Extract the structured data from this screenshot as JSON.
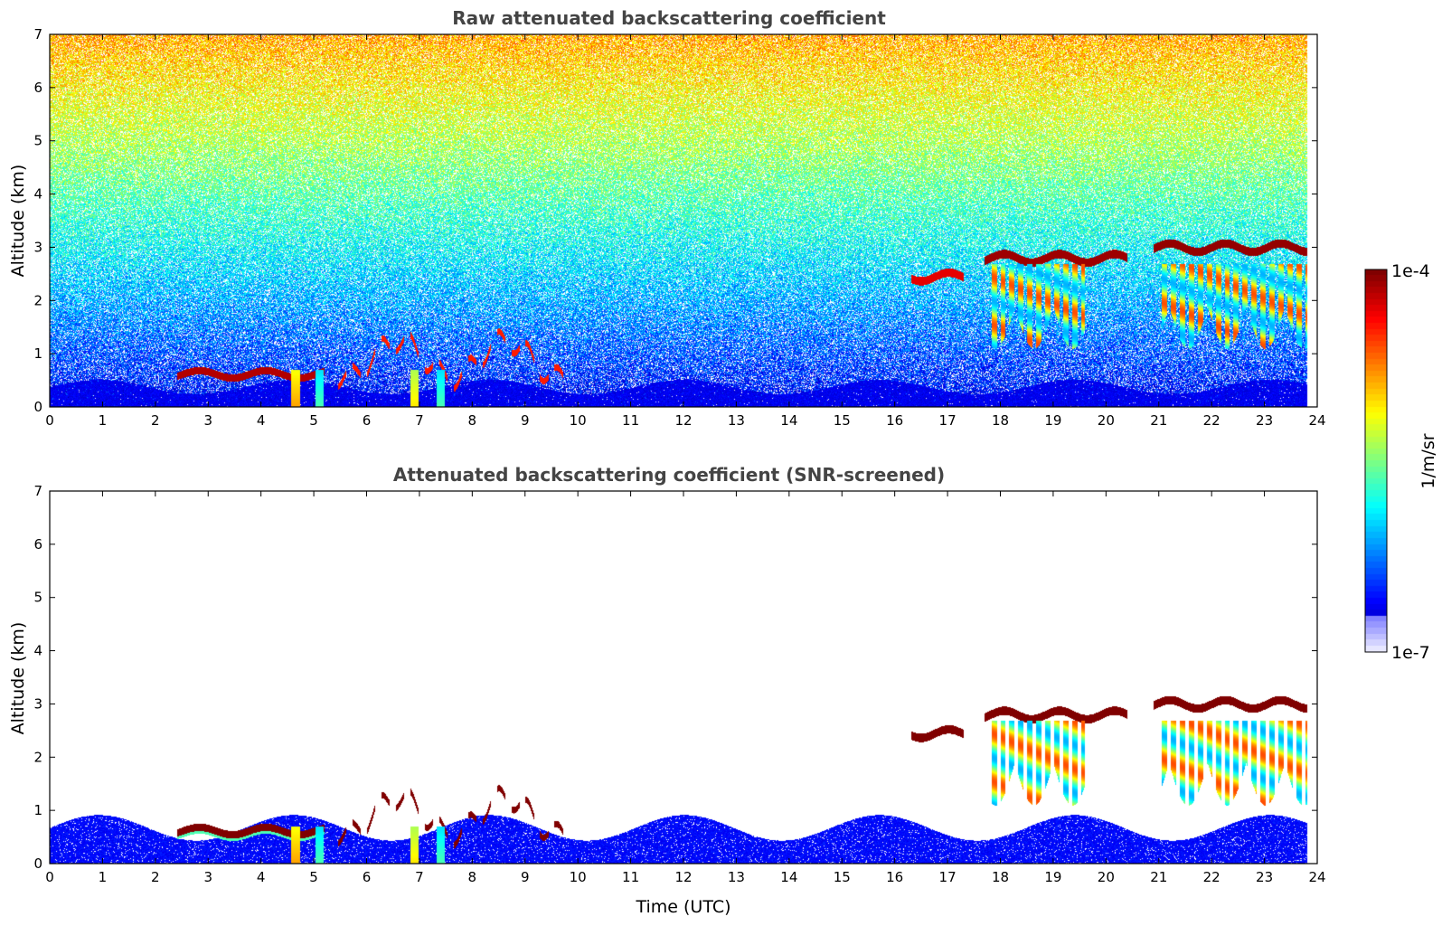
{
  "chart_data": [
    {
      "type": "heatmap",
      "title": "Raw attenuated backscattering coefficient",
      "xlabel": "",
      "ylabel": "Altitude (km)",
      "xlim": [
        0,
        24
      ],
      "ylim": [
        0,
        7
      ],
      "x_ticks": [
        "0",
        "1",
        "2",
        "3",
        "4",
        "5",
        "6",
        "7",
        "8",
        "9",
        "10",
        "11",
        "12",
        "13",
        "14",
        "15",
        "16",
        "17",
        "18",
        "19",
        "20",
        "21",
        "22",
        "23",
        "24"
      ],
      "y_ticks": [
        "0",
        "1",
        "2",
        "3",
        "4",
        "5",
        "6",
        "7"
      ],
      "data_end_time": 23.8,
      "noise": true,
      "noise_level": 1.0,
      "features": [
        {
          "kind": "surface-layer",
          "t0": 0.0,
          "t1": 23.8,
          "top_km": 0.45,
          "value": 0.08
        },
        {
          "kind": "boundary-layer-top",
          "t0": 2.4,
          "t1": 5.2,
          "alt_km": 0.62,
          "value": 0.95
        },
        {
          "kind": "low-clouds",
          "t0": 5.4,
          "t1": 9.8,
          "alt_km": 0.9,
          "value": 0.85
        },
        {
          "kind": "precip-streak",
          "t": 4.65,
          "value": 0.72
        },
        {
          "kind": "precip-streak",
          "t": 5.1,
          "value": 0.45
        },
        {
          "kind": "precip-streak",
          "t": 6.9,
          "value": 0.65
        },
        {
          "kind": "precip-streak",
          "t": 7.4,
          "value": 0.45
        },
        {
          "kind": "cloud-layer",
          "t0": 16.3,
          "t1": 17.3,
          "alt_km": 2.45,
          "value": 0.9
        },
        {
          "kind": "cloud-layer",
          "t0": 17.7,
          "t1": 20.4,
          "alt_km": 2.8,
          "value": 0.97
        },
        {
          "kind": "cloud-layer",
          "t0": 20.9,
          "t1": 23.8,
          "alt_km": 3.0,
          "value": 0.98
        },
        {
          "kind": "virga",
          "t0": 17.8,
          "t1": 19.6,
          "bottom_km": 1.0,
          "value": 0.55
        },
        {
          "kind": "virga",
          "t0": 21.0,
          "t1": 23.8,
          "bottom_km": 1.0,
          "value": 0.55
        }
      ]
    },
    {
      "type": "heatmap",
      "title": "Attenuated backscattering coefficient (SNR-screened)",
      "xlabel": "Time (UTC)",
      "ylabel": "Altitude (km)",
      "xlim": [
        0,
        24
      ],
      "ylim": [
        0,
        7
      ],
      "x_ticks": [
        "0",
        "1",
        "2",
        "3",
        "4",
        "5",
        "6",
        "7",
        "8",
        "9",
        "10",
        "11",
        "12",
        "13",
        "14",
        "15",
        "16",
        "17",
        "18",
        "19",
        "20",
        "21",
        "22",
        "23",
        "24"
      ],
      "y_ticks": [
        "0",
        "1",
        "2",
        "3",
        "4",
        "5",
        "6",
        "7"
      ],
      "data_end_time": 23.8,
      "noise": false,
      "noise_level": 0.0,
      "features": [
        {
          "kind": "surface-layer",
          "t0": 0.0,
          "t1": 23.8,
          "top_km": 0.8,
          "value": 0.1
        },
        {
          "kind": "boundary-layer-top",
          "t0": 2.4,
          "t1": 5.2,
          "alt_km": 0.62,
          "value": 1.0
        },
        {
          "kind": "low-clouds",
          "t0": 5.4,
          "t1": 9.8,
          "alt_km": 0.9,
          "value": 1.0
        },
        {
          "kind": "precip-streak",
          "t": 4.65,
          "value": 0.72
        },
        {
          "kind": "precip-streak",
          "t": 5.1,
          "value": 0.45
        },
        {
          "kind": "precip-streak",
          "t": 6.9,
          "value": 0.65
        },
        {
          "kind": "precip-streak",
          "t": 7.4,
          "value": 0.45
        },
        {
          "kind": "cloud-layer",
          "t0": 16.3,
          "t1": 17.3,
          "alt_km": 2.45,
          "value": 1.0
        },
        {
          "kind": "cloud-layer",
          "t0": 17.7,
          "t1": 20.4,
          "alt_km": 2.8,
          "value": 1.0
        },
        {
          "kind": "cloud-layer",
          "t0": 20.9,
          "t1": 23.8,
          "alt_km": 3.0,
          "value": 1.0
        },
        {
          "kind": "virga",
          "t0": 17.8,
          "t1": 19.6,
          "bottom_km": 1.0,
          "value": 0.55
        },
        {
          "kind": "virga",
          "t0": 21.0,
          "t1": 23.8,
          "bottom_km": 1.0,
          "value": 0.55
        }
      ]
    }
  ],
  "colorbar": {
    "label": "1/m/sr",
    "max_label": "1e-4",
    "min_label": "1e-7",
    "colormap": "jet"
  }
}
